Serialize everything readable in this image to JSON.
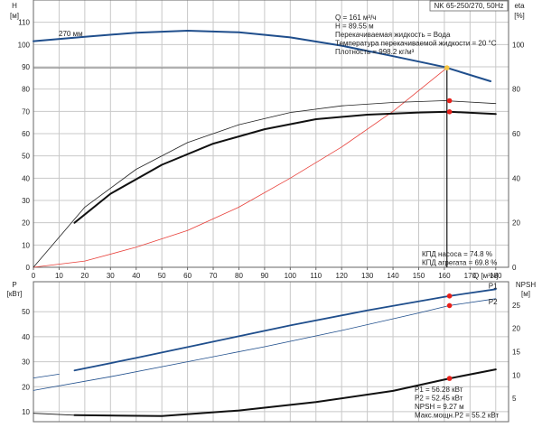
{
  "chart_data": [
    {
      "type": "line",
      "panel": "head-efficiency",
      "header_label": "NK 65-250/270, 50Hz",
      "left_axis": {
        "name": "H",
        "unit": "[м]",
        "ylim": [
          0,
          120
        ],
        "ticks": [
          0,
          10,
          20,
          30,
          40,
          50,
          60,
          70,
          80,
          90,
          100,
          110
        ]
      },
      "right_axis": {
        "name": "eta",
        "unit": "[%]",
        "ylim": [
          0,
          120
        ],
        "ticks": [
          0,
          20,
          40,
          60,
          80,
          100
        ]
      },
      "x_axis": {
        "name": "Q",
        "unit": "[м³/ч]",
        "xlim": [
          0,
          185
        ],
        "ticks": [
          0,
          10,
          20,
          30,
          40,
          50,
          60,
          70,
          80,
          90,
          100,
          110,
          120,
          130,
          140,
          150,
          160,
          170,
          180
        ]
      },
      "grid": true,
      "duty_point": {
        "q": 161,
        "h": 89.55
      },
      "info_lines": [
        "Q = 161 м³/ч",
        "H = 89.55 м",
        "Перекачиваемая жидкость = Вода",
        "Температура перекачиваемой жидкости = 20 °C",
        "Плотность = 998.2 кг/м³"
      ],
      "efficiency_lines": [
        "КПД насоса = 74.8 %",
        "КПД агрегата = 69.8 %"
      ],
      "series": [
        {
          "name": "270 мм",
          "axis": "left",
          "color": "#1f4e8c",
          "width": 2,
          "x": [
            0,
            20,
            40,
            60,
            80,
            100,
            120,
            140,
            160,
            178
          ],
          "y": [
            101.5,
            103.5,
            105.3,
            106.2,
            105.5,
            103.2,
            99.5,
            94.8,
            89.9,
            83.5
          ]
        },
        {
          "axis": "left",
          "color": "#e8403a",
          "width": 0.8,
          "x": [
            0,
            20,
            40,
            60,
            80,
            100,
            120,
            140,
            161
          ],
          "y": [
            0,
            2.8,
            9,
            16.5,
            27,
            40,
            54,
            70,
            89.55
          ]
        },
        {
          "axis": "right",
          "color": "#222222",
          "width": 0.8,
          "x": [
            0,
            20,
            40,
            60,
            80,
            100,
            120,
            140,
            160,
            180
          ],
          "y": [
            0,
            27,
            44,
            56,
            64,
            69.5,
            72.5,
            74,
            74.8,
            73.5
          ]
        },
        {
          "axis": "right",
          "color": "#111111",
          "width": 2,
          "x": [
            16,
            30,
            50,
            70,
            90,
            110,
            130,
            150,
            162,
            180
          ],
          "y": [
            20,
            33,
            46,
            55.5,
            62,
            66.5,
            68.5,
            69.5,
            69.8,
            68.8
          ]
        }
      ],
      "markers": [
        {
          "axis": "left",
          "x": 161,
          "y": 89.55,
          "color": "#f5c542"
        },
        {
          "axis": "right",
          "x": 162,
          "y": 74.8,
          "color": "#e8201a"
        },
        {
          "axis": "right",
          "x": 162,
          "y": 69.8,
          "color": "#e8201a"
        }
      ]
    },
    {
      "type": "line",
      "panel": "power-npsh",
      "left_axis": {
        "name": "P",
        "unit": "[кВт]",
        "ylim": [
          6,
          62
        ],
        "ticks": [
          10,
          20,
          30,
          40,
          50
        ]
      },
      "right_axis": {
        "name": "NPSH",
        "unit": "[м]",
        "ylim": [
          0,
          30
        ],
        "ticks": [
          5,
          10,
          15,
          20,
          25
        ]
      },
      "x_axis": {
        "xlim": [
          0,
          185
        ]
      },
      "grid": true,
      "info_lines": [
        "P1 = 56.28 кВт",
        "P2 = 52.45 кВт",
        "NPSH = 9.27 м",
        "Макс.мощн.P2 = 55.2 кВт"
      ],
      "series": [
        {
          "name": "P1",
          "axis": "left",
          "color": "#1f4e8c",
          "width": 1.8,
          "x": [
            16,
            40,
            70,
            100,
            130,
            162,
            180
          ],
          "y": [
            26.5,
            31.5,
            38,
            44.5,
            50.5,
            56.28,
            59
          ]
        },
        {
          "name": "P2",
          "axis": "left",
          "color": "#1f4e8c",
          "width": 0.8,
          "x": [
            0,
            30,
            60,
            90,
            120,
            150,
            162,
            180
          ],
          "y": [
            18.5,
            24,
            30,
            36,
            42.5,
            49.5,
            52.45,
            55.2
          ]
        },
        {
          "axis": "left",
          "color": "#1f4e8c",
          "width": 0.8,
          "x": [
            0,
            10
          ],
          "y": [
            23.5,
            25
          ]
        },
        {
          "axis": "right",
          "color": "#111111",
          "width": 0.8,
          "x": [
            0,
            16
          ],
          "y": [
            1.8,
            1.4
          ]
        },
        {
          "axis": "right",
          "color": "#111111",
          "width": 2,
          "x": [
            16,
            50,
            80,
            110,
            140,
            162,
            180
          ],
          "y": [
            1.4,
            1.2,
            2.4,
            4.2,
            6.6,
            9.27,
            11.2
          ]
        }
      ],
      "markers": [
        {
          "axis": "left",
          "x": 162,
          "y": 56.28,
          "color": "#e8201a"
        },
        {
          "axis": "left",
          "x": 162,
          "y": 52.45,
          "color": "#e8201a"
        },
        {
          "axis": "right",
          "x": 162,
          "y": 9.27,
          "color": "#e8201a"
        }
      ]
    }
  ]
}
